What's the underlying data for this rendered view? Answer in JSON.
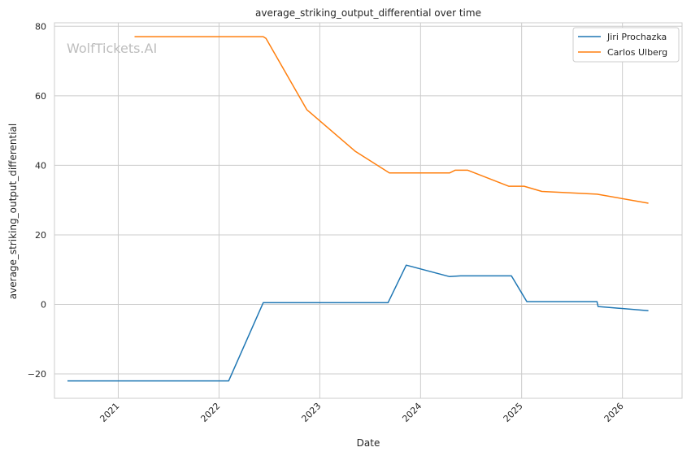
{
  "chart_data": {
    "type": "line",
    "title": "average_striking_output_differential over time",
    "xlabel": "Date",
    "ylabel": "average_striking_output_differential",
    "watermark": "WolfTickets.AI",
    "xlim": [
      "2020-05-15",
      "2026-08-05"
    ],
    "ylim": [
      -27,
      81
    ],
    "x_ticks": [
      {
        "date": "2021-01-01",
        "label": "2021"
      },
      {
        "date": "2022-01-01",
        "label": "2022"
      },
      {
        "date": "2023-01-01",
        "label": "2023"
      },
      {
        "date": "2024-01-01",
        "label": "2024"
      },
      {
        "date": "2025-01-01",
        "label": "2025"
      },
      {
        "date": "2026-01-01",
        "label": "2026"
      }
    ],
    "y_ticks": [
      {
        "value": -20,
        "label": "−20"
      },
      {
        "value": 0,
        "label": "0"
      },
      {
        "value": 20,
        "label": "20"
      },
      {
        "value": 40,
        "label": "40"
      },
      {
        "value": 60,
        "label": "60"
      },
      {
        "value": 80,
        "label": "80"
      }
    ],
    "grid": true,
    "legend_position": "top-right",
    "series": [
      {
        "name": "Jiri Prochazka",
        "color": "#1f77b4",
        "points": [
          [
            "2020-07-01",
            -22
          ],
          [
            "2022-02-05",
            -22
          ],
          [
            "2022-06-10",
            0.5
          ],
          [
            "2023-09-05",
            0.5
          ],
          [
            "2023-11-10",
            11.3
          ],
          [
            "2024-04-15",
            8
          ],
          [
            "2024-05-25",
            8.2
          ],
          [
            "2024-11-25",
            8.2
          ],
          [
            "2025-01-20",
            0.8
          ],
          [
            "2025-10-01",
            0.8
          ],
          [
            "2025-10-05",
            -0.6
          ],
          [
            "2026-04-05",
            -1.8
          ]
        ]
      },
      {
        "name": "Carlos Ulberg",
        "color": "#ff7f0e",
        "points": [
          [
            "2021-03-01",
            77
          ],
          [
            "2022-06-10",
            77
          ],
          [
            "2022-06-20",
            76.5
          ],
          [
            "2022-11-15",
            56
          ],
          [
            "2023-05-10",
            44
          ],
          [
            "2023-09-10",
            37.8
          ],
          [
            "2024-04-15",
            37.8
          ],
          [
            "2024-05-05",
            38.6
          ],
          [
            "2024-06-20",
            38.6
          ],
          [
            "2024-11-15",
            34
          ],
          [
            "2025-01-10",
            34
          ],
          [
            "2025-03-15",
            32.5
          ],
          [
            "2025-10-01",
            31.7
          ],
          [
            "2026-04-05",
            29.1
          ]
        ]
      }
    ]
  }
}
